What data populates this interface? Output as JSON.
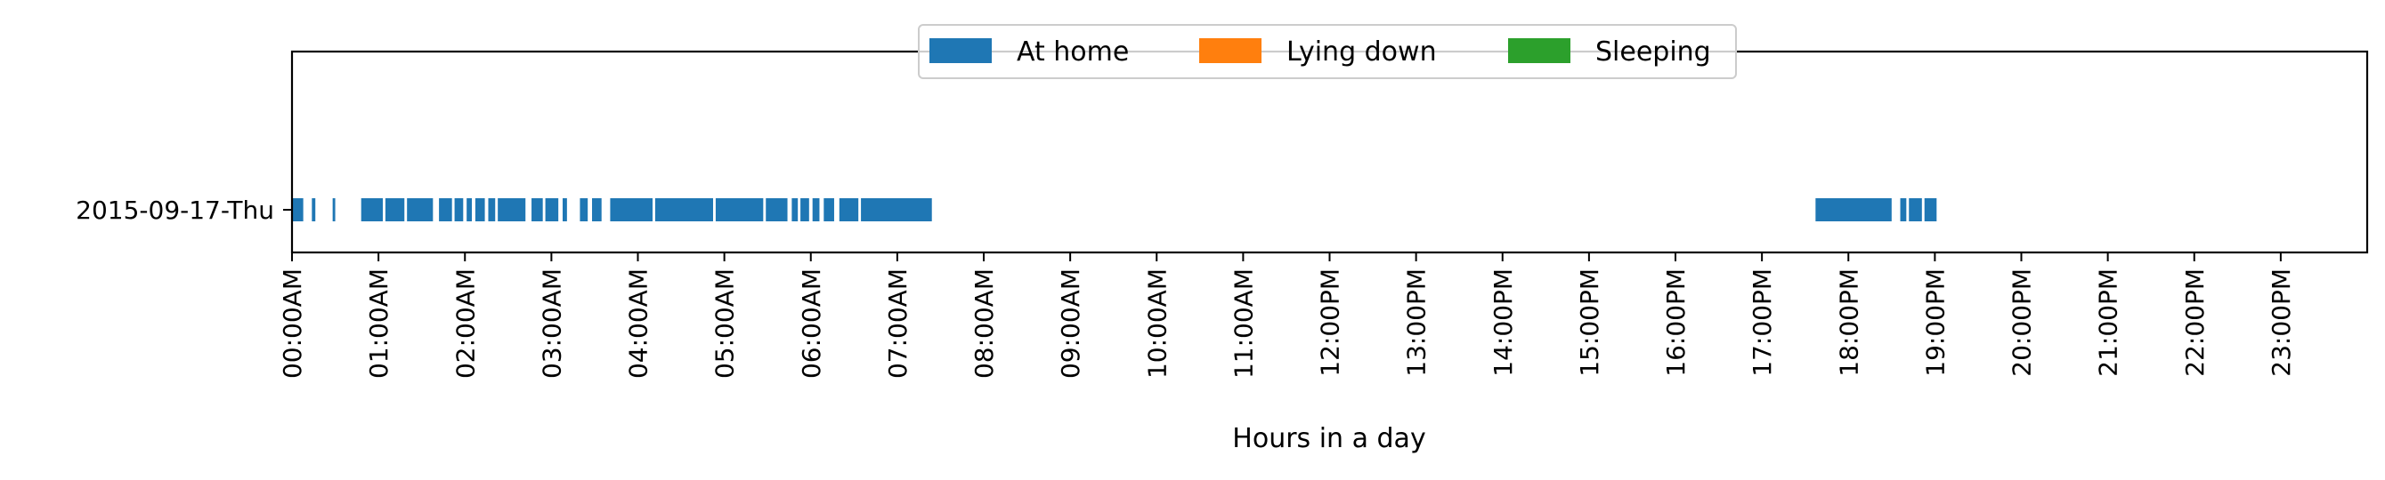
{
  "chart_data": {
    "type": "bar",
    "orientation": "horizontal",
    "xlabel": "Hours in a day",
    "ylabel": "",
    "xlim": [
      0,
      24
    ],
    "x_tick_values": [
      0,
      1,
      2,
      3,
      4,
      5,
      6,
      7,
      8,
      9,
      10,
      11,
      12,
      13,
      14,
      15,
      16,
      17,
      18,
      19,
      20,
      21,
      22,
      23
    ],
    "x_tick_labels": [
      "00:00AM",
      "01:00AM",
      "02:00AM",
      "03:00AM",
      "04:00AM",
      "05:00AM",
      "06:00AM",
      "07:00AM",
      "08:00AM",
      "09:00AM",
      "10:00AM",
      "11:00AM",
      "12:00PM",
      "13:00PM",
      "14:00PM",
      "15:00PM",
      "16:00PM",
      "17:00PM",
      "18:00PM",
      "19:00PM",
      "20:00PM",
      "21:00PM",
      "22:00PM",
      "23:00PM"
    ],
    "categories": [
      "2015-09-17-Thu"
    ],
    "legend_position": "top-center",
    "grid": false,
    "series": [
      {
        "name": "At home",
        "color": "#1f77b4",
        "intervals": [
          [
            "2015-09-17-Thu",
            0.0,
            0.13
          ],
          [
            "2015-09-17-Thu",
            0.23,
            0.27
          ],
          [
            "2015-09-17-Thu",
            0.47,
            0.5
          ],
          [
            "2015-09-17-Thu",
            0.8,
            1.05
          ],
          [
            "2015-09-17-Thu",
            1.08,
            1.3
          ],
          [
            "2015-09-17-Thu",
            1.33,
            1.63
          ],
          [
            "2015-09-17-Thu",
            1.7,
            1.85
          ],
          [
            "2015-09-17-Thu",
            1.88,
            1.98
          ],
          [
            "2015-09-17-Thu",
            2.02,
            2.08
          ],
          [
            "2015-09-17-Thu",
            2.12,
            2.23
          ],
          [
            "2015-09-17-Thu",
            2.27,
            2.35
          ],
          [
            "2015-09-17-Thu",
            2.38,
            2.7
          ],
          [
            "2015-09-17-Thu",
            2.77,
            2.9
          ],
          [
            "2015-09-17-Thu",
            2.93,
            3.08
          ],
          [
            "2015-09-17-Thu",
            3.13,
            3.18
          ],
          [
            "2015-09-17-Thu",
            3.33,
            3.42
          ],
          [
            "2015-09-17-Thu",
            3.47,
            3.58
          ],
          [
            "2015-09-17-Thu",
            3.68,
            4.17
          ],
          [
            "2015-09-17-Thu",
            4.2,
            4.87
          ],
          [
            "2015-09-17-Thu",
            4.9,
            5.45
          ],
          [
            "2015-09-17-Thu",
            5.48,
            5.73
          ],
          [
            "2015-09-17-Thu",
            5.78,
            5.85
          ],
          [
            "2015-09-17-Thu",
            5.88,
            5.98
          ],
          [
            "2015-09-17-Thu",
            6.02,
            6.1
          ],
          [
            "2015-09-17-Thu",
            6.15,
            6.27
          ],
          [
            "2015-09-17-Thu",
            6.33,
            6.55
          ],
          [
            "2015-09-17-Thu",
            6.58,
            7.4
          ],
          [
            "2015-09-17-Thu",
            17.62,
            18.5
          ],
          [
            "2015-09-17-Thu",
            18.6,
            18.67
          ],
          [
            "2015-09-17-Thu",
            18.7,
            18.85
          ],
          [
            "2015-09-17-Thu",
            18.88,
            19.02
          ]
        ]
      },
      {
        "name": "Lying down",
        "color": "#ff7f0e",
        "intervals": []
      },
      {
        "name": "Sleeping",
        "color": "#2ca02c",
        "intervals": []
      }
    ]
  }
}
